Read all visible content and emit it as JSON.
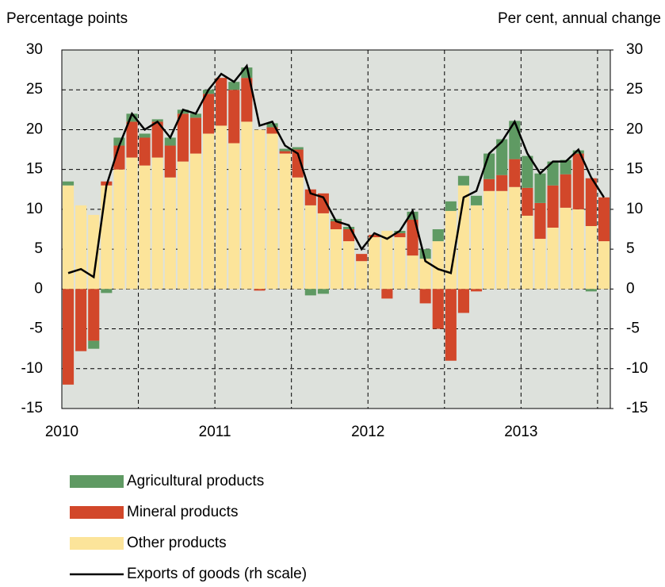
{
  "chart_data": {
    "type": "bar",
    "y_axis_label": "Percentage points",
    "y2_axis_label": "Per cent, annual change",
    "categories": [
      "2010",
      null,
      null,
      null,
      null,
      null,
      null,
      null,
      null,
      null,
      null,
      null,
      "2011",
      null,
      null,
      null,
      null,
      null,
      null,
      null,
      null,
      null,
      null,
      null,
      "2012",
      null,
      null,
      null,
      null,
      null,
      null,
      null,
      null,
      null,
      null,
      null,
      "2013",
      null,
      null,
      null,
      null,
      null,
      null
    ],
    "stacked": true,
    "series": [
      {
        "name": "Agricultural products",
        "color": "#5f9a63",
        "values": [
          0.5,
          0,
          -1,
          -0.5,
          1,
          1,
          0.5,
          0.3,
          1,
          0.5,
          0.5,
          0.5,
          0,
          1,
          1.3,
          0,
          0.5,
          0.3,
          0.3,
          -0.8,
          -0.6,
          0.3,
          0.3,
          0,
          0,
          0,
          0.3,
          1,
          1.2,
          1.5,
          1.2,
          1.2,
          1.2,
          3.2,
          4.5,
          4.8,
          4,
          3.7,
          3,
          1.8,
          0.4,
          -0.3,
          0
        ]
      },
      {
        "name": "Mineral products",
        "color": "#d2472a",
        "values": [
          -12,
          -7.8,
          -6.5,
          0.5,
          3,
          4.5,
          3.5,
          4.5,
          4,
          6,
          4.5,
          5,
          6,
          6.7,
          5.5,
          -0.2,
          0.8,
          0.3,
          3.5,
          2,
          2.5,
          1,
          1.5,
          0.9,
          0.3,
          -1.2,
          0.5,
          4.5,
          -1.8,
          -5,
          -9,
          -3,
          -0.3,
          1.5,
          2,
          3.5,
          3.5,
          4.5,
          5.3,
          4.2,
          7,
          6,
          5.5
        ]
      },
      {
        "name": "Other products",
        "color": "#fce49a",
        "values": [
          13,
          10.5,
          9.3,
          13,
          15,
          16.5,
          15.5,
          16.5,
          14,
          16,
          17,
          19.5,
          20.5,
          18.3,
          21,
          20,
          19.5,
          17,
          14,
          10.5,
          9.5,
          7.5,
          6,
          3.5,
          6.5,
          7.3,
          6.5,
          4.2,
          3.8,
          6,
          9.8,
          13,
          10.5,
          12.3,
          12.3,
          12.8,
          9.2,
          6.3,
          7.7,
          10.2,
          10,
          7.9,
          6
        ]
      },
      {
        "name": "Exports of goods (rh scale)",
        "type": "line",
        "axis": "y2",
        "color": "#000000",
        "values": [
          2,
          2.5,
          1.5,
          13,
          18,
          22,
          20,
          21,
          19,
          22.5,
          22,
          25,
          27,
          26,
          28,
          20.5,
          21,
          18,
          17,
          12,
          11.5,
          8.5,
          8,
          5,
          7,
          6.3,
          7.3,
          9.8,
          3.5,
          2.5,
          2,
          11.5,
          12.3,
          17,
          18.5,
          21,
          17,
          14.5,
          16,
          16,
          17.5,
          14,
          11.5
        ]
      }
    ],
    "ylim": [
      -15,
      30
    ],
    "yticks": [
      -15,
      -10,
      -5,
      0,
      5,
      10,
      15,
      20,
      25,
      30
    ],
    "y2lim": [
      -15,
      30
    ],
    "y2ticks": [
      -15,
      -10,
      -5,
      0,
      5,
      10,
      15,
      20,
      25,
      30
    ],
    "grid": true,
    "legend": "bottom"
  }
}
